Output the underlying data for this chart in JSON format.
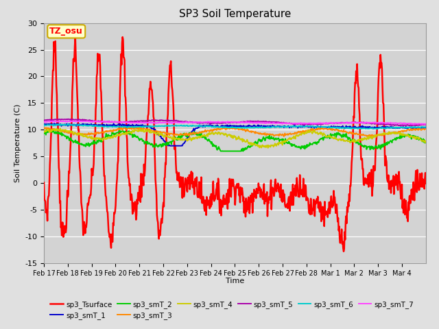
{
  "title": "SP3 Soil Temperature",
  "ylabel": "Soil Temperature (C)",
  "xlabel": "Time",
  "ylim": [
    -15,
    30
  ],
  "figsize": [
    6.4,
    4.8
  ],
  "dpi": 100,
  "bg_color": "#e0e0e0",
  "plot_bg_color": "#d3d3d3",
  "annotation_text": "TZ_osu",
  "annotation_bg": "#ffffcc",
  "annotation_border": "#ccaa00",
  "series_colors": {
    "sp3_Tsurface": "#ff0000",
    "sp3_smT_1": "#0000cc",
    "sp3_smT_2": "#00cc00",
    "sp3_smT_3": "#ff8800",
    "sp3_smT_4": "#cccc00",
    "sp3_smT_5": "#aa00aa",
    "sp3_smT_6": "#00cccc",
    "sp3_smT_7": "#ff44ff"
  },
  "series_lw": {
    "sp3_Tsurface": 1.8,
    "sp3_smT_1": 1.4,
    "sp3_smT_2": 1.4,
    "sp3_smT_3": 1.4,
    "sp3_smT_4": 1.4,
    "sp3_smT_5": 1.4,
    "sp3_smT_6": 1.4,
    "sp3_smT_7": 1.4
  },
  "xtick_labels": [
    "Feb 17",
    "Feb 18",
    "Feb 19",
    "Feb 20",
    "Feb 21",
    "Feb 22",
    "Feb 23",
    "Feb 24",
    "Feb 25",
    "Feb 26",
    "Feb 27",
    "Feb 28",
    "Mar 1",
    "Mar 2",
    "Mar 3",
    "Mar 4"
  ],
  "ytick_values": [
    -15,
    -10,
    -5,
    0,
    5,
    10,
    15,
    20,
    25,
    30
  ],
  "legend_order": [
    "sp3_Tsurface",
    "sp3_smT_1",
    "sp3_smT_2",
    "sp3_smT_3",
    "sp3_smT_4",
    "sp3_smT_5",
    "sp3_smT_6",
    "sp3_smT_7"
  ]
}
